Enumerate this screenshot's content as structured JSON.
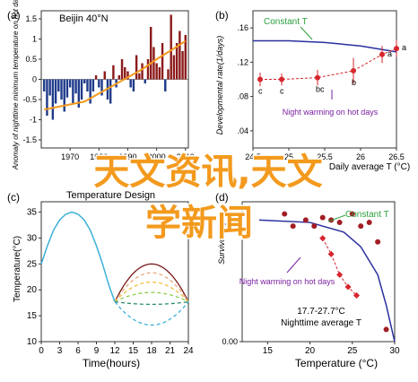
{
  "overlay": {
    "line1": "天文资讯,天文",
    "line2": "学新闻"
  },
  "chart_data": [
    {
      "id": "a",
      "type": "bar",
      "panel_label": "(a)",
      "title": "Beijin 40°N",
      "ylabel": "Anomaly of nighttime minimum temperature on hot days",
      "x_ticks": [
        "1970",
        "1980",
        "1990",
        "2000",
        "2010"
      ],
      "y_ticks": [
        "1.5",
        "1",
        "0.5",
        "0",
        "-0.5",
        "-1",
        "-1.5"
      ],
      "x": [
        1961,
        1962,
        1963,
        1964,
        1965,
        1966,
        1967,
        1968,
        1969,
        1970,
        1971,
        1972,
        1973,
        1974,
        1975,
        1976,
        1977,
        1978,
        1979,
        1980,
        1981,
        1982,
        1983,
        1984,
        1985,
        1986,
        1987,
        1988,
        1989,
        1990,
        1991,
        1992,
        1993,
        1994,
        1995,
        1996,
        1997,
        1998,
        1999,
        2000,
        2001,
        2002,
        2003,
        2004,
        2005,
        2006,
        2007,
        2008,
        2009,
        2010
      ],
      "values": [
        -0.3,
        -0.9,
        -0.4,
        -1.0,
        -0.6,
        -0.3,
        -0.5,
        -0.8,
        -0.45,
        -0.2,
        -0.6,
        -0.35,
        -0.7,
        -0.5,
        -0.1,
        -0.3,
        -0.6,
        -0.3,
        0.1,
        -0.2,
        -0.4,
        0.2,
        -0.5,
        -0.6,
        0.35,
        -0.2,
        0.1,
        0.5,
        0.3,
        0.2,
        -0.2,
        -0.3,
        0.6,
        0.15,
        0.4,
        -0.1,
        0.5,
        1.3,
        0.8,
        0.4,
        0.3,
        0.9,
        -0.3,
        0.25,
        1.6,
        0.6,
        0.9,
        1.2,
        0.7,
        1.1
      ],
      "trend": [
        [
          1961,
          -0.75
        ],
        [
          1968,
          -0.65
        ],
        [
          1975,
          -0.55
        ],
        [
          1980,
          -0.35
        ],
        [
          1985,
          -0.15
        ],
        [
          1990,
          0.05
        ],
        [
          1995,
          0.25
        ],
        [
          2000,
          0.5
        ],
        [
          2005,
          0.72
        ],
        [
          2010,
          0.95
        ]
      ],
      "ylim": [
        -1.7,
        1.7
      ],
      "colors": {
        "positive": "#8b1a1a",
        "negative": "#1f3a8a",
        "trend": "#f39a1e"
      }
    },
    {
      "id": "b",
      "type": "scatter",
      "panel_label": "(b)",
      "xlabel": "Daily average T (°C)",
      "ylabel": "Developmental rate(1/days)",
      "x_ticks": [
        "24.5",
        "25",
        "25.5",
        "26",
        "26.5"
      ],
      "y_ticks": [
        ".16",
        ".12",
        ".08",
        ".04"
      ],
      "xlim": [
        24.5,
        26.5
      ],
      "ylim": [
        0.02,
        0.18
      ],
      "series": [
        {
          "name": "Constant T",
          "type": "line",
          "color": "#2a2f9e",
          "x": [
            24.5,
            25.0,
            25.5,
            26.0,
            26.5
          ],
          "y": [
            0.145,
            0.145,
            0.143,
            0.139,
            0.132
          ]
        },
        {
          "type": "scatter",
          "color": "#d6262e",
          "x": [
            24.6,
            24.9,
            25.4,
            25.9,
            26.3,
            26.5
          ],
          "y": [
            0.1,
            0.1,
            0.102,
            0.11,
            0.129,
            0.136
          ],
          "err": [
            0.008,
            0.007,
            0.009,
            0.015,
            0.01,
            0.01
          ],
          "labels": [
            "c",
            "c",
            "bc",
            "b",
            "a",
            "a"
          ]
        }
      ],
      "annotations": [
        {
          "text": "Constant T",
          "color": "#2a9e3a"
        },
        {
          "text": "Night warming on hot days",
          "color": "#7a1fa0"
        }
      ]
    },
    {
      "id": "c",
      "type": "line",
      "panel_label": "(c)",
      "title": "Temperature Design",
      "xlabel": "Time(hours)",
      "ylabel": "Temperature(°C)",
      "x_ticks": [
        "0",
        "3",
        "6",
        "9",
        "12",
        "15",
        "18",
        "21",
        "24"
      ],
      "y_ticks": [
        "10",
        "15",
        "20",
        "25",
        "30",
        "35"
      ],
      "xlim": [
        0,
        24
      ],
      "ylim": [
        10,
        37
      ],
      "curve_day": {
        "x": [
          0,
          1,
          2,
          3,
          4,
          5,
          6,
          7,
          8,
          9,
          10,
          11,
          12
        ],
        "y": [
          25,
          28.5,
          31.5,
          33.5,
          34.6,
          35,
          34.6,
          33.5,
          31.5,
          28.5,
          25,
          21,
          17.7
        ]
      },
      "night_series": [
        {
          "color": "#7a1a1a",
          "dash": "",
          "min": 25
        },
        {
          "color": "#e8a87c",
          "dash": "4,3",
          "min": 23.3
        },
        {
          "color": "#f0c040",
          "dash": "4,3",
          "min": 21.5
        },
        {
          "color": "#8ccf4a",
          "dash": "4,3",
          "min": 19.5
        },
        {
          "color": "#2a8b6a",
          "dash": "4,3",
          "min": 17.2
        },
        {
          "color": "#3ab0d8",
          "dash": "4,3",
          "min": 13.2
        }
      ],
      "colors": {
        "day": "#3ab0d8"
      }
    },
    {
      "id": "d",
      "type": "scatter",
      "panel_label": "(d)",
      "xlabel": "Temperature (°C)",
      "ylabel": "Survivorship",
      "x_ticks": [
        "15",
        "20",
        "25",
        "30"
      ],
      "y_ticks": [
        "0.00"
      ],
      "xlim": [
        12,
        30
      ],
      "ylim": [
        0,
        1.15
      ],
      "series": [
        {
          "name": "Constant T",
          "type": "line",
          "color": "#2a2f9e",
          "x": [
            14,
            20,
            24,
            26,
            28,
            29,
            30
          ],
          "y": [
            1.0,
            0.98,
            0.9,
            0.78,
            0.55,
            0.3,
            0.0
          ]
        },
        {
          "type": "scatter",
          "color": "#a21d24",
          "marker": "circle",
          "x": [
            17,
            18,
            19.5,
            20.5,
            21.5,
            22.5,
            23.5,
            25,
            26,
            27,
            28,
            29
          ],
          "y": [
            1.05,
            0.95,
            1.0,
            0.95,
            1.02,
            1.0,
            0.98,
            1.05,
            0.95,
            0.98,
            0.82,
            0.1
          ]
        },
        {
          "type": "scatter",
          "color": "#d6262e",
          "marker": "diamond",
          "x": [
            21.5,
            22.5,
            23.5,
            24.5,
            25.5
          ],
          "y": [
            0.85,
            0.72,
            0.55,
            0.45,
            0.38
          ]
        }
      ],
      "annotations": [
        {
          "text": "Constant T",
          "color": "#2a9e3a"
        },
        {
          "text": "Night warming on hot days",
          "color": "#7a1fa0"
        },
        {
          "text": "17.7-27.7°C",
          "color": "#222222"
        },
        {
          "text": "Nighttime average T",
          "color": "#222222"
        }
      ]
    }
  ]
}
